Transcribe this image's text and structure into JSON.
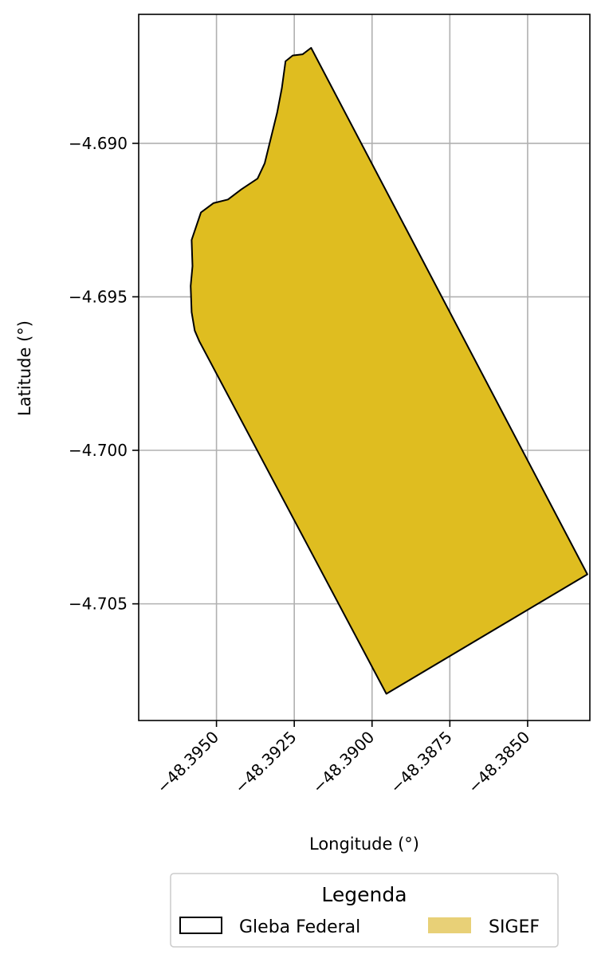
{
  "chart_data": {
    "type": "map",
    "xlabel": "Longitude (°)",
    "ylabel": "Latitude (°)",
    "xlim": [
      -48.3975,
      -48.383
    ],
    "ylim": [
      -4.7088,
      -4.6858
    ],
    "grid": true,
    "x_ticks": [
      {
        "value": -48.395,
        "label": "−48.3950"
      },
      {
        "value": -48.3925,
        "label": "−48.3925"
      },
      {
        "value": -48.39,
        "label": "−48.3900"
      },
      {
        "value": -48.3875,
        "label": "−48.3875"
      },
      {
        "value": -48.385,
        "label": "−48.3850"
      }
    ],
    "y_ticks": [
      {
        "value": -4.69,
        "label": "−4.690"
      },
      {
        "value": -4.695,
        "label": "−4.695"
      },
      {
        "value": -4.7,
        "label": "−4.700"
      },
      {
        "value": -4.705,
        "label": "−4.705"
      }
    ],
    "layers": [
      {
        "name": "SIGEF",
        "fill": "#DFBD20",
        "stroke": "#000000",
        "polygon": [
          [
            -48.39196,
            -4.68689
          ],
          [
            -48.39223,
            -4.6871
          ],
          [
            -48.39255,
            -4.68714
          ],
          [
            -48.39278,
            -4.68733
          ],
          [
            -48.3929,
            -4.6882
          ],
          [
            -48.39305,
            -4.689
          ],
          [
            -48.39328,
            -4.68995
          ],
          [
            -48.39345,
            -4.69065
          ],
          [
            -48.39368,
            -4.69115
          ],
          [
            -48.3942,
            -4.6915
          ],
          [
            -48.39463,
            -4.69183
          ],
          [
            -48.3951,
            -4.69195
          ],
          [
            -48.3955,
            -4.69225
          ],
          [
            -48.3958,
            -4.69315
          ],
          [
            -48.39577,
            -4.694
          ],
          [
            -48.39583,
            -4.69465
          ],
          [
            -48.3958,
            -4.6955
          ],
          [
            -48.3957,
            -4.6961
          ],
          [
            -48.39555,
            -4.69645
          ],
          [
            -48.38954,
            -4.70793
          ],
          [
            -48.38308,
            -4.70404
          ]
        ]
      }
    ]
  },
  "legend": {
    "title": "Legenda",
    "position": "bottom-center",
    "items": [
      {
        "label": "Gleba Federal",
        "swatch": "outline",
        "color": "#000000"
      },
      {
        "label": "SIGEF",
        "swatch": "fill",
        "color": "#E8D077"
      }
    ]
  }
}
